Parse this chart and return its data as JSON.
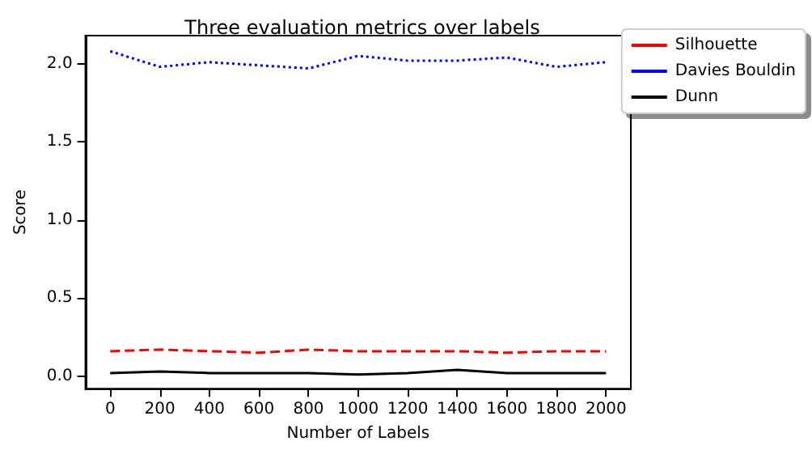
{
  "chart_data": {
    "type": "line",
    "title": "Three evaluation metrics over labels",
    "xlabel": "Number of Labels",
    "ylabel": "Score",
    "x": [
      0,
      200,
      400,
      600,
      800,
      1000,
      1200,
      1400,
      1600,
      1800,
      2000
    ],
    "series": [
      {
        "name": "Silhouette",
        "color": "#ff0000",
        "line_style": "dashed",
        "values": [
          0.16,
          0.17,
          0.16,
          0.15,
          0.17,
          0.16,
          0.16,
          0.16,
          0.15,
          0.16,
          0.16
        ]
      },
      {
        "name": "Davies Bouldin",
        "color": "#0000ff",
        "line_style": "dotted",
        "values": [
          2.08,
          1.98,
          2.01,
          1.99,
          1.97,
          2.05,
          2.02,
          2.02,
          2.04,
          1.98,
          2.01
        ]
      },
      {
        "name": "Dunn",
        "color": "#000000",
        "line_style": "solid",
        "values": [
          0.02,
          0.03,
          0.02,
          0.02,
          0.02,
          0.01,
          0.02,
          0.04,
          0.02,
          0.02,
          0.02
        ]
      }
    ],
    "xlim": [
      -100,
      2100
    ],
    "xticks": [
      0,
      200,
      400,
      600,
      800,
      1000,
      1200,
      1400,
      1600,
      1800,
      2000
    ],
    "ylim": [
      -0.08,
      2.18
    ],
    "yticks": [
      {
        "value": 0,
        "label": "0.0"
      },
      0.5,
      {
        "value": 1,
        "label": "1.0"
      },
      1.5,
      {
        "value": 2,
        "label": "2.0"
      }
    ],
    "grid": false,
    "legend": "top right",
    "marker": "none"
  }
}
